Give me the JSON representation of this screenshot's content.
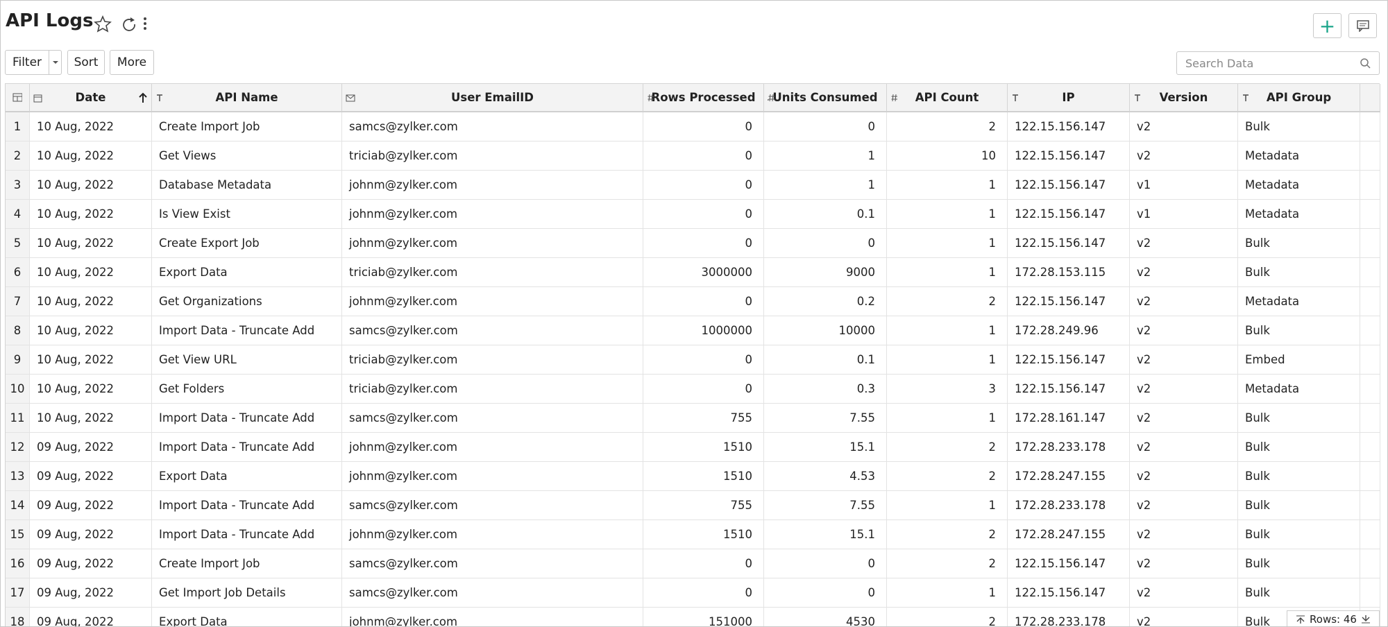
{
  "header": {
    "title": "API Logs"
  },
  "toolbar": {
    "buttons": [
      "Filter",
      "Sort",
      "More"
    ],
    "search_placeholder": "Search Data"
  },
  "table": {
    "columns": [
      "Date",
      "API Name",
      "User EmailID",
      "Rows Processed",
      "Units Consumed",
      "API Count",
      "IP",
      "Version",
      "API Group"
    ],
    "row_numbers": [
      "1",
      "2",
      "3",
      "4",
      "5",
      "6",
      "7",
      "8",
      "9",
      "10",
      "11",
      "12",
      "13",
      "14",
      "15",
      "16",
      "17",
      "18"
    ],
    "rows": [
      [
        "10 Aug, 2022",
        "Create Import Job",
        "samcs@zylker.com",
        "0",
        "0",
        "2",
        "122.15.156.147",
        "v2",
        "Bulk"
      ],
      [
        "10 Aug, 2022",
        "Get Views",
        "triciab@zylker.com",
        "0",
        "1",
        "10",
        "122.15.156.147",
        "v2",
        "Metadata"
      ],
      [
        "10 Aug, 2022",
        "Database Metadata",
        "johnm@zylker.com",
        "0",
        "1",
        "1",
        "122.15.156.147",
        "v1",
        "Metadata"
      ],
      [
        "10 Aug, 2022",
        "Is View Exist",
        "johnm@zylker.com",
        "0",
        "0.1",
        "1",
        "122.15.156.147",
        "v1",
        "Metadata"
      ],
      [
        "10 Aug, 2022",
        "Create Export Job",
        "johnm@zylker.com",
        "0",
        "0",
        "1",
        "122.15.156.147",
        "v2",
        "Bulk"
      ],
      [
        "10 Aug, 2022",
        "Export Data",
        "triciab@zylker.com",
        "3000000",
        "9000",
        "1",
        "172.28.153.115",
        "v2",
        "Bulk"
      ],
      [
        "10 Aug, 2022",
        "Get Organizations",
        "johnm@zylker.com",
        "0",
        "0.2",
        "2",
        "122.15.156.147",
        "v2",
        "Metadata"
      ],
      [
        "10 Aug, 2022",
        "Import Data - Truncate Add",
        "samcs@zylker.com",
        "1000000",
        "10000",
        "1",
        "172.28.249.96",
        "v2",
        "Bulk"
      ],
      [
        "10 Aug, 2022",
        "Get View URL",
        "triciab@zylker.com",
        "0",
        "0.1",
        "1",
        "122.15.156.147",
        "v2",
        "Embed"
      ],
      [
        "10 Aug, 2022",
        "Get Folders",
        "triciab@zylker.com",
        "0",
        "0.3",
        "3",
        "122.15.156.147",
        "v2",
        "Metadata"
      ],
      [
        "10 Aug, 2022",
        "Import Data - Truncate Add",
        "samcs@zylker.com",
        "755",
        "7.55",
        "1",
        "172.28.161.147",
        "v2",
        "Bulk"
      ],
      [
        "09 Aug, 2022",
        "Import Data - Truncate Add",
        "johnm@zylker.com",
        "1510",
        "15.1",
        "2",
        "172.28.233.178",
        "v2",
        "Bulk"
      ],
      [
        "09 Aug, 2022",
        "Export Data",
        "johnm@zylker.com",
        "1510",
        "4.53",
        "2",
        "172.28.247.155",
        "v2",
        "Bulk"
      ],
      [
        "09 Aug, 2022",
        "Import Data - Truncate Add",
        "samcs@zylker.com",
        "755",
        "7.55",
        "1",
        "172.28.233.178",
        "v2",
        "Bulk"
      ],
      [
        "09 Aug, 2022",
        "Import Data - Truncate Add",
        "johnm@zylker.com",
        "1510",
        "15.1",
        "2",
        "172.28.247.155",
        "v2",
        "Bulk"
      ],
      [
        "09 Aug, 2022",
        "Create Import Job",
        "samcs@zylker.com",
        "0",
        "0",
        "2",
        "122.15.156.147",
        "v2",
        "Bulk"
      ],
      [
        "09 Aug, 2022",
        "Get Import Job Details",
        "samcs@zylker.com",
        "0",
        "0",
        "1",
        "122.15.156.147",
        "v2",
        "Bulk"
      ],
      [
        "09 Aug, 2022",
        "Export Data",
        "johnm@zylker.com",
        "151000",
        "4530",
        "2",
        "172.28.233.178",
        "v2",
        "Bulk"
      ]
    ]
  },
  "footer": {
    "rows_label": "Rows: 46"
  }
}
